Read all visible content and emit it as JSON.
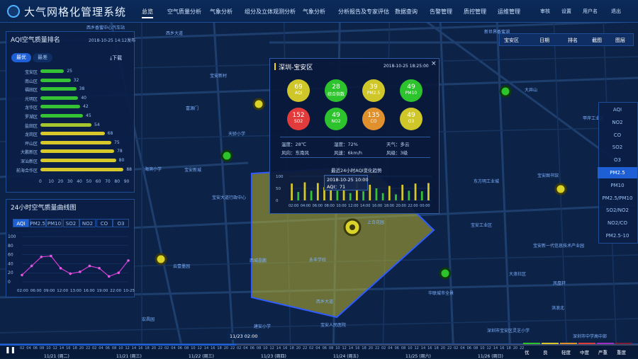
{
  "app": {
    "title": "大气网格化管理系统"
  },
  "nav": [
    "总览",
    "空气质量分析",
    "气象分析",
    "组分及立体观测分析",
    "气象分析",
    "分析报告及专家评估",
    "数据查询",
    "告警管理",
    "质控管理",
    "运维管理"
  ],
  "header_right": [
    "审核",
    "设置",
    "用户名",
    "退出"
  ],
  "map_labels": [
    {
      "text": "西乡香蜜中心汽车站",
      "x": 122,
      "y": 34
    },
    {
      "text": "西乡大道",
      "x": 234,
      "y": 42
    },
    {
      "text": "新世界香蜜湖",
      "x": 683,
      "y": 40
    },
    {
      "text": "宝安新村",
      "x": 296,
      "y": 102
    },
    {
      "text": "大井山",
      "x": 740,
      "y": 122
    },
    {
      "text": "富源门",
      "x": 262,
      "y": 148
    },
    {
      "text": "天骄小学",
      "x": 322,
      "y": 184
    },
    {
      "text": "甲岸工业区",
      "x": 822,
      "y": 162
    },
    {
      "text": "宝安新城",
      "x": 260,
      "y": 235
    },
    {
      "text": "海滨小学",
      "x": 204,
      "y": 234
    },
    {
      "text": "宝安大道行政中心",
      "x": 299,
      "y": 274
    },
    {
      "text": "东方明工业城",
      "x": 668,
      "y": 251
    },
    {
      "text": "宝安图书馆",
      "x": 758,
      "y": 243
    },
    {
      "text": "宝安工业区",
      "x": 664,
      "y": 313
    },
    {
      "text": "上合花园",
      "x": 518,
      "y": 309
    },
    {
      "text": "永丰学校",
      "x": 436,
      "y": 362
    },
    {
      "text": "西城晶鹏",
      "x": 352,
      "y": 363
    },
    {
      "text": "宝安新一代信息技术产业园",
      "x": 752,
      "y": 342
    },
    {
      "text": "云壹墨园",
      "x": 244,
      "y": 371
    },
    {
      "text": "大浪社区",
      "x": 718,
      "y": 382
    },
    {
      "text": "凤凰轩",
      "x": 780,
      "y": 395
    },
    {
      "text": "华联城市全景",
      "x": 604,
      "y": 409
    },
    {
      "text": "西乡大道",
      "x": 446,
      "y": 421
    },
    {
      "text": "宏昌园",
      "x": 200,
      "y": 446
    },
    {
      "text": "洪浪北",
      "x": 778,
      "y": 430
    },
    {
      "text": "建安小学",
      "x": 358,
      "y": 456
    },
    {
      "text": "宝安人民医院",
      "x": 452,
      "y": 454
    },
    {
      "text": "深圳市宝安区灵芝小学",
      "x": 687,
      "y": 462
    },
    {
      "text": "深圳市中学高中部",
      "x": 808,
      "y": 470
    }
  ],
  "aqi_panel": {
    "title": "AQI空气质量排名",
    "date": "2018-10-25 14:12发布",
    "tab_good": "最优",
    "tab_bad": "最差",
    "download": "下载",
    "rows": [
      {
        "name": "宝安区",
        "value": 25
      },
      {
        "name": "南山区",
        "value": 32
      },
      {
        "name": "福田区",
        "value": 38
      },
      {
        "name": "光明区",
        "value": 40
      },
      {
        "name": "龙华区",
        "value": 42
      },
      {
        "name": "罗湖区",
        "value": 45
      },
      {
        "name": "盐田区",
        "value": 54
      },
      {
        "name": "龙岗区",
        "value": 68
      },
      {
        "name": "坪山区",
        "value": 75
      },
      {
        "name": "大鹏新区",
        "value": 78
      },
      {
        "name": "深汕新区",
        "value": 80
      },
      {
        "name": "前海合作区",
        "value": 88
      }
    ],
    "xticks": [
      "0",
      "10",
      "20",
      "30",
      "40",
      "50",
      "60",
      "70",
      "80",
      "90"
    ]
  },
  "curve_panel": {
    "title": "24小时空气质量曲线图",
    "tabs": [
      "AQI",
      "PM2.5",
      "PM10",
      "SO2",
      "NO2",
      "CO",
      "O3"
    ],
    "yticks": [
      "100",
      "80",
      "60",
      "40",
      "20",
      "0"
    ],
    "xticks": [
      "02:00",
      "06:00",
      "09:00",
      "12:00",
      "13:00",
      "16:00",
      "19:00",
      "22:00",
      "10-25"
    ],
    "values": [
      15,
      35,
      55,
      57,
      30,
      18,
      22,
      35,
      30,
      12,
      20,
      47
    ]
  },
  "popup": {
    "title": "深圳-宝安区",
    "time": "2018-10-25 18:25:00",
    "indices": [
      {
        "value": "69",
        "label": "AQI",
        "color": "#cfc62a"
      },
      {
        "value": "28",
        "label": "综合指数",
        "color": "#2cc32c"
      },
      {
        "value": "39",
        "label": "PM2.5",
        "color": "#cfc62a"
      },
      {
        "value": "49",
        "label": "PM10",
        "color": "#2cc32c"
      },
      {
        "value": "152",
        "label": "SO2",
        "color": "#e23b3b"
      },
      {
        "value": "49",
        "label": "NO2",
        "color": "#2cc32c"
      },
      {
        "value": "135",
        "label": "CO",
        "color": "#e0902c"
      },
      {
        "value": "49",
        "label": "O3",
        "color": "#cfc62a"
      }
    ],
    "weather": [
      [
        "温度：28℃",
        "湿度：72%",
        "天气：多云"
      ],
      [
        "风向：东南风",
        "风速：6km/h",
        "风级：3级"
      ]
    ],
    "chart_title": "最近24小时AQI变化趋势",
    "chart_yticks": [
      "100",
      "50",
      "0"
    ],
    "chart_xticks": [
      "02:00",
      "04:00",
      "06:00",
      "08:00",
      "10:00",
      "12:00",
      "14:00",
      "16:00",
      "18:00",
      "20:00",
      "22:00",
      "00:00"
    ],
    "chart_values": [
      70,
      35,
      75,
      40,
      72,
      55,
      70,
      40,
      72,
      30,
      78,
      38,
      65,
      50,
      30,
      60,
      25,
      65,
      40,
      70,
      38,
      72
    ],
    "tooltip": {
      "time": "2018-10-25 10:00",
      "label": "AQI：71"
    }
  },
  "toolbar": [
    "宝安区",
    "日期",
    "排名",
    "截图",
    "图层"
  ],
  "right_list": [
    "AQI",
    "NO2",
    "CO",
    "SO2",
    "O3",
    "PM2.5",
    "PM10",
    "PM2.5/PM10",
    "SO2/NO2",
    "NO2/CO",
    "PM2.5-10"
  ],
  "right_list_active": 5,
  "timeline": {
    "current": "11/23 02:00",
    "days": [
      "11/21 (周二)",
      "11/21 (周三)",
      "11/22 (周三)",
      "11/23 (周四)",
      "11/24 (周五)",
      "11/25 (周六)",
      "11/26 (周日)"
    ],
    "hours": [
      "02",
      "04",
      "06",
      "08",
      "10",
      "12",
      "14",
      "16",
      "18",
      "20",
      "22"
    ],
    "legend": [
      "优",
      "良",
      "轻度",
      "中度",
      "严重",
      "重度"
    ]
  }
}
